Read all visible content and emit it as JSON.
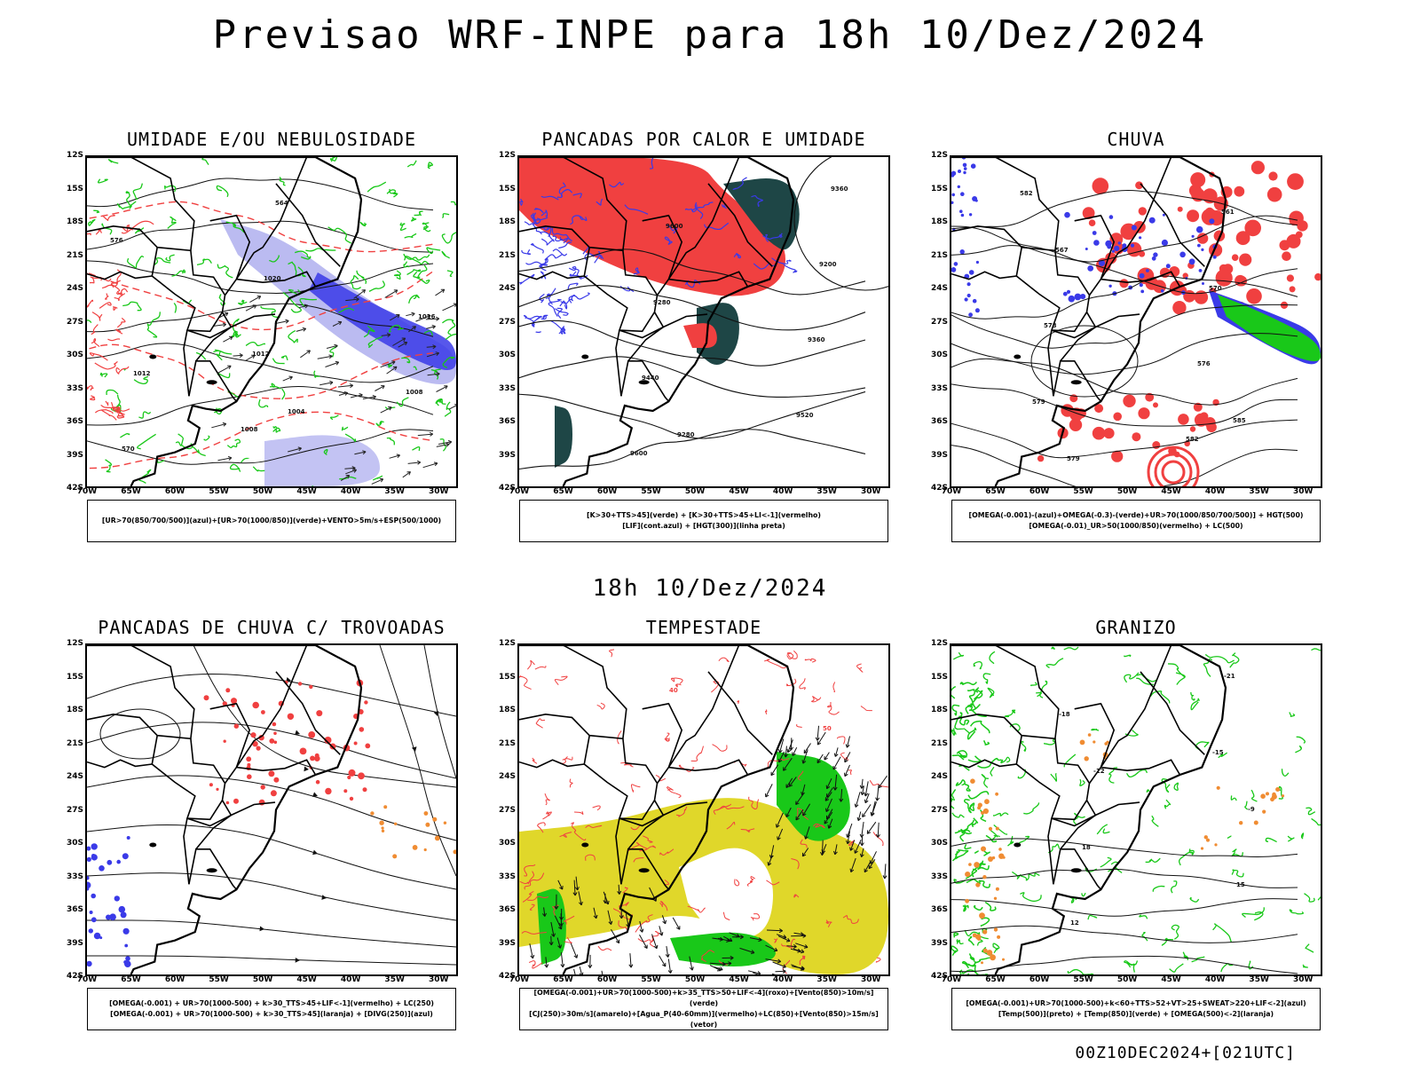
{
  "title": "Previsao WRF-INPE  para 18h 10/Dez/2024",
  "subtitle_time": "18h 10/Dez/2024",
  "footer": "00Z10DEC2024+[021UTC]",
  "lat_ticks": [
    "12S",
    "15S",
    "18S",
    "21S",
    "24S",
    "27S",
    "30S",
    "33S",
    "36S",
    "39S",
    "42S"
  ],
  "lon_ticks": [
    "70W",
    "65W",
    "60W",
    "55W",
    "50W",
    "45W",
    "40W",
    "35W",
    "30W"
  ],
  "colors": {
    "blue": "#3a3ae8",
    "green": "#19c819",
    "red": "#f04040",
    "light_purple": "#b4b4f0",
    "dark_teal": "#1e4646",
    "yellow": "#e0d72a",
    "orange": "#f08c32",
    "purple": "#a030c8"
  },
  "panels": [
    {
      "id": "umidade",
      "title": "UMIDADE E/OU NEBULOSIDADE",
      "legend": [
        "[UR>70(850/700/500)](azul)+[UR>70(1000/850)](verde)+VENTO>5m/s+ESP(500/1000)"
      ],
      "labels": [
        "1008",
        "1008",
        "1012",
        "1016",
        "1020",
        "576",
        "564",
        "570",
        "1004",
        "1012"
      ]
    },
    {
      "id": "pancadas-calor",
      "title": "PANCADAS POR CALOR E UMIDADE",
      "legend": [
        "[K>30+TTS>45](verde) + [K>30+TTS>45+LI<-1](vermelho)",
        "[LIF](cont.azul) + [HGT(300)](linha preta)"
      ],
      "labels": [
        "9600",
        "9520",
        "9440",
        "9360",
        "9280",
        "9200",
        "9600",
        "9360",
        "9280"
      ]
    },
    {
      "id": "chuva",
      "title": "CHUVA",
      "legend": [
        "[OMEGA(-0.001)-(azul)+OMEGA(-0.3)-(verde)+UR>70(1000/850/700/500)] + HGT(500)",
        "[OMEGA(-0.01)_UR>50(1000/850)(vermelho) + LC(500)"
      ],
      "labels": [
        "582",
        "582",
        "579",
        "576",
        "573",
        "570",
        "567",
        "561",
        "579",
        "585"
      ]
    },
    {
      "id": "trovoadas",
      "title": "PANCADAS DE CHUVA C/ TROVOADAS",
      "legend": [
        "[OMEGA(-0.001) + UR>70(1000-500) + k>30_TTS>45+LIF<-1](vermelho) + LC(250)",
        "[OMEGA(-0.001) + UR>70(1000-500) + k>30_TTS>45](laranja) + [DIVG(250)](azul)"
      ],
      "labels": []
    },
    {
      "id": "tempestade",
      "title": "TEMPESTADE",
      "legend": [
        "[OMEGA(-0.001)+UR>70(1000-500)+k>35_TTS>50+LIF<-4](roxo)+[Vento(850)>10m/s](verde)",
        "[CJ(250)>30m/s](amarelo)+[Agua_P(40-60mm)](vermelho)+LC(850)+[Vento(850)>15m/s](vetor)"
      ],
      "labels": [
        "50",
        "40"
      ]
    },
    {
      "id": "granizo",
      "title": "GRANIZO",
      "legend": [
        "[OMEGA(-0.001)+UR>70(1000-500)+k<60+TTS>52+VT>25+SWEAT>220+LIF<-2](azul)",
        "[Temp(500)](preto) + [Temp(850)](verde) + [OMEGA(500)<-2](laranja)"
      ],
      "labels": [
        "-15",
        "-18",
        "-21",
        "12",
        "15",
        "18",
        "-9",
        "-12"
      ]
    }
  ]
}
